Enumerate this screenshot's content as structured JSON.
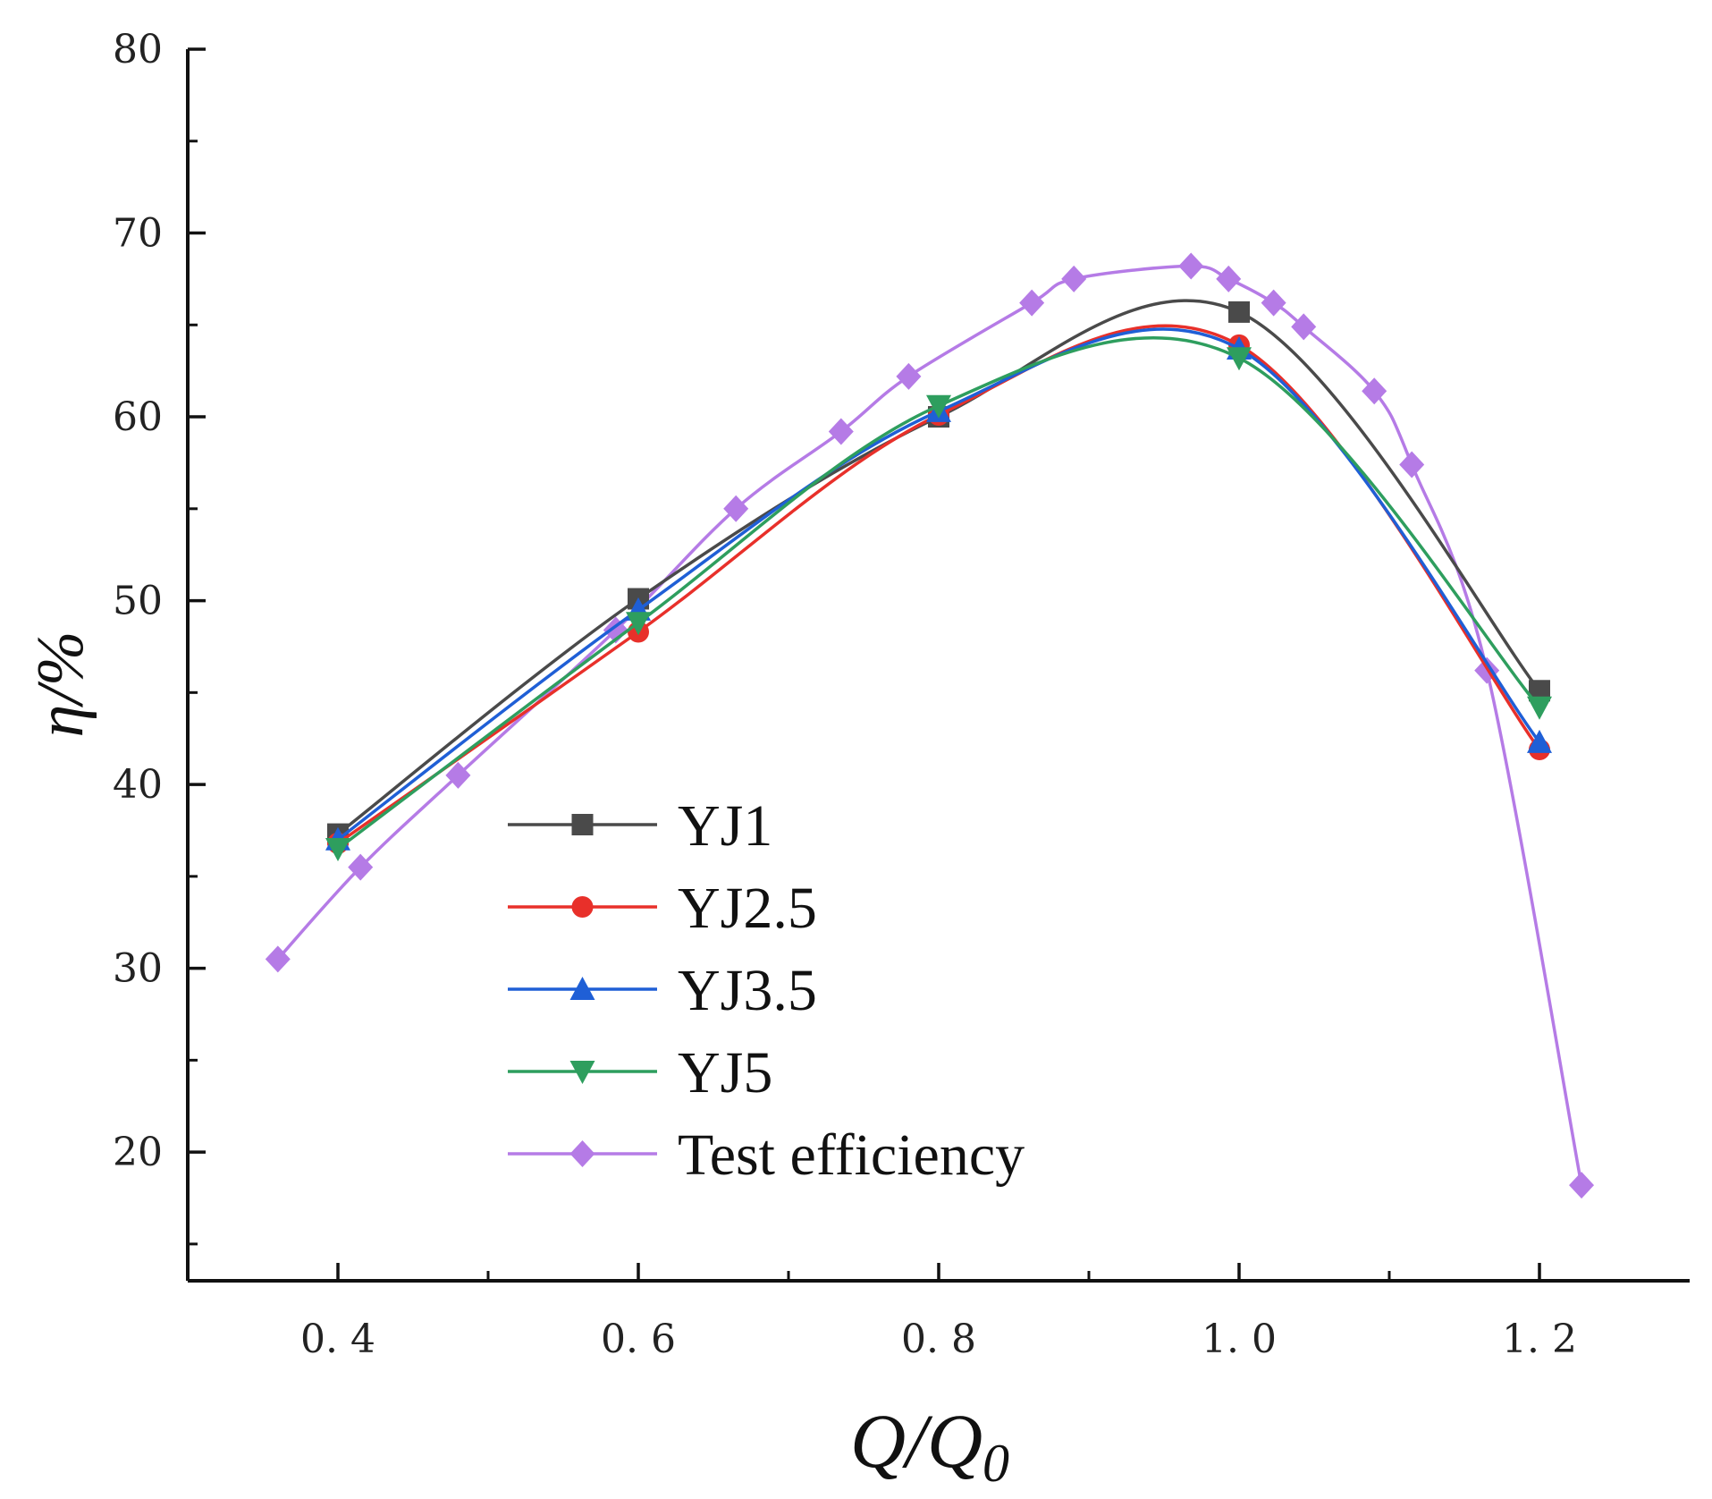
{
  "chart_data": {
    "type": "line",
    "xlabel": "Q/Q",
    "xlabel_subscript": "0",
    "ylabel": "η/%",
    "xlim": [
      0.3,
      1.3
    ],
    "ylim": [
      13,
      80
    ],
    "x_ticks": [
      0.4,
      0.6,
      0.8,
      1.0,
      1.2
    ],
    "x_tick_labels": [
      "0. 4",
      "0. 6",
      "0. 8",
      "1. 0",
      "1. 2"
    ],
    "x_minor_ticks": [
      0.5,
      0.7,
      0.9,
      1.1
    ],
    "y_ticks": [
      20,
      30,
      40,
      50,
      60,
      70,
      80
    ],
    "y_tick_labels": [
      "20",
      "30",
      "40",
      "50",
      "60",
      "70",
      "80"
    ],
    "y_minor_ticks": [
      15,
      25,
      35,
      45,
      55,
      65,
      75
    ],
    "grid": false,
    "legend_position": "bottom-center",
    "series": [
      {
        "name": "YJ1",
        "color": "#4a4a4a",
        "marker": "square",
        "x": [
          0.4,
          0.6,
          0.8,
          1.0,
          1.2
        ],
        "y": [
          37.3,
          50.1,
          60.0,
          65.7,
          45.1
        ]
      },
      {
        "name": "YJ2.5",
        "color": "#e8302a",
        "marker": "circle",
        "x": [
          0.4,
          0.6,
          0.8,
          1.0,
          1.2
        ],
        "y": [
          36.8,
          48.3,
          60.1,
          63.9,
          41.9
        ]
      },
      {
        "name": "YJ3.5",
        "color": "#1f5fd6",
        "marker": "triangle-up",
        "x": [
          0.4,
          0.6,
          0.8,
          1.0,
          1.2
        ],
        "y": [
          37.0,
          49.5,
          60.3,
          63.7,
          42.3
        ]
      },
      {
        "name": "YJ5",
        "color": "#2e9e5e",
        "marker": "triangle-down",
        "x": [
          0.4,
          0.6,
          0.8,
          1.0,
          1.2
        ],
        "y": [
          36.5,
          48.8,
          60.6,
          63.2,
          44.2
        ]
      },
      {
        "name": "Test efficiency",
        "color": "#b57be6",
        "marker": "diamond",
        "x": [
          0.36,
          0.415,
          0.48,
          0.585,
          0.665,
          0.735,
          0.78,
          0.862,
          0.89,
          0.968,
          0.993,
          1.023,
          1.043,
          1.09,
          1.115,
          1.165,
          1.228
        ],
        "y": [
          30.5,
          35.5,
          40.5,
          48.4,
          55.0,
          59.2,
          62.2,
          66.2,
          67.5,
          68.2,
          67.5,
          66.2,
          64.9,
          61.4,
          57.4,
          46.2,
          18.2
        ]
      }
    ]
  }
}
